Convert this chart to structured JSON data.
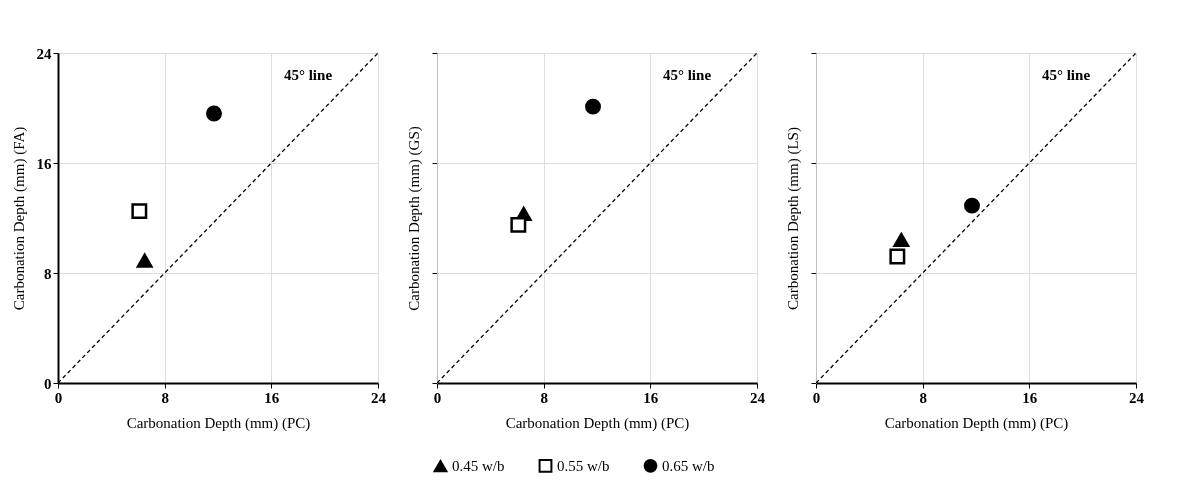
{
  "chart_data": [
    {
      "type": "scatter",
      "xlabel": "Carbonation Depth (mm) (PC)",
      "ylabel": "Carbonation Depth (mm) (FA)",
      "xlim": [
        0,
        24
      ],
      "ylim": [
        0,
        24
      ],
      "xticks": [
        0,
        8,
        16,
        24
      ],
      "yticks": [
        0,
        8,
        16,
        24
      ],
      "grid": true,
      "series": [
        {
          "name": "0.45 w/b",
          "color": "#000000",
          "marker": "triangle",
          "x": [
            6.5
          ],
          "values": [
            8.9
          ]
        },
        {
          "name": "0.55 w/b",
          "color": "#000000",
          "marker": "square",
          "x": [
            6.1
          ],
          "values": [
            12.5
          ]
        },
        {
          "name": "0.65 w/b",
          "color": "#000000",
          "marker": "circle",
          "x": [
            11.7
          ],
          "values": [
            19.6
          ]
        },
        {
          "type": "line",
          "color": "#000000",
          "line_style": "dashed",
          "x": [
            0,
            24
          ],
          "values": [
            0,
            24
          ]
        }
      ],
      "annotations": [
        "45° line"
      ],
      "legend": "bottom"
    },
    {
      "type": "scatter",
      "xlabel": "Carbonation Depth (mm) (PC)",
      "ylabel": "Carbonation Depth (mm) (GS)",
      "xlim": [
        0,
        24
      ],
      "ylim": [
        0,
        24
      ],
      "xticks": [
        0,
        8,
        16,
        24
      ],
      "yticks": [
        0,
        8,
        16,
        24
      ],
      "grid": true,
      "tick_labels": "x",
      "series": [
        {
          "name": "0.45 w/b",
          "color": "#000000",
          "marker": "triangle",
          "x": [
            6.5
          ],
          "values": [
            12.3
          ]
        },
        {
          "name": "0.55 w/b",
          "color": "#000000",
          "marker": "square",
          "x": [
            6.1
          ],
          "values": [
            11.5
          ]
        },
        {
          "name": "0.65 w/b",
          "color": "#000000",
          "marker": "circle",
          "x": [
            11.7
          ],
          "values": [
            20.1
          ]
        },
        {
          "type": "line",
          "color": "#000000",
          "line_style": "dashed",
          "x": [
            0,
            24
          ],
          "values": [
            0,
            24
          ]
        }
      ],
      "annotations": [
        "45° line"
      ]
    },
    {
      "type": "scatter",
      "xlabel": "Carbonation Depth (mm) (PC)",
      "ylabel": "Carbonation Depth (mm) (LS)",
      "xlim": [
        0,
        24
      ],
      "ylim": [
        0,
        24
      ],
      "xticks": [
        0,
        8,
        16,
        24
      ],
      "yticks": [
        0,
        8,
        16,
        24
      ],
      "grid": true,
      "tick_labels": "x",
      "series": [
        {
          "name": "0.45 w/b",
          "color": "#000000",
          "marker": "triangle",
          "x": [
            6.4
          ],
          "values": [
            10.4
          ]
        },
        {
          "name": "0.55 w/b",
          "color": "#000000",
          "marker": "square",
          "x": [
            6.1
          ],
          "values": [
            9.2
          ]
        },
        {
          "name": "0.65 w/b",
          "color": "#000000",
          "marker": "circle",
          "x": [
            11.7
          ],
          "values": [
            12.9
          ]
        },
        {
          "type": "line",
          "color": "#000000",
          "line_style": "dashed",
          "x": [
            0,
            24
          ],
          "values": [
            0,
            24
          ]
        }
      ],
      "annotations": [
        "45° line"
      ]
    }
  ]
}
